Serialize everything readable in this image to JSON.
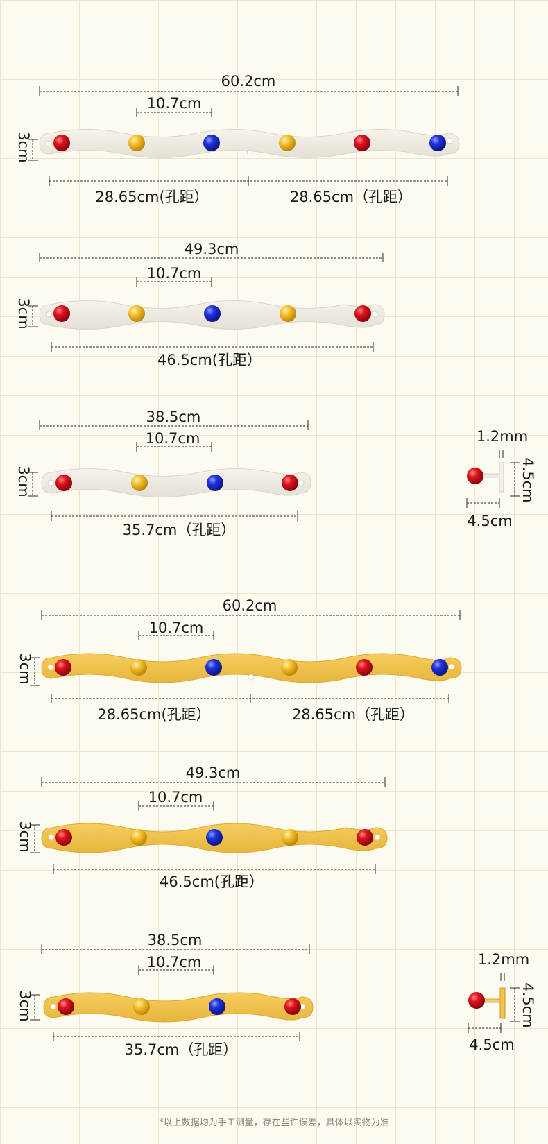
{
  "colors": {
    "background": "#fdfbef",
    "grid": "#ebe6d2",
    "white_rack": "#efebe3",
    "yellow_rack": "#f1c44e",
    "knob_red": "#c8101a",
    "knob_yellow": "#f0b92c",
    "knob_blue": "#1c2fd0",
    "dimension_line": "#2a2a2a"
  },
  "products": [
    {
      "finish": "white",
      "knobs": [
        "red",
        "yellow",
        "blue",
        "yellow",
        "red",
        "blue"
      ],
      "center_hole": true,
      "labels": {
        "total_length": "60.2cm",
        "knob_spacing": "10.7cm",
        "height": "3cm",
        "hole_distance_left": "28.65cm(孔距）",
        "hole_distance_right": "28.65cm（孔距）"
      }
    },
    {
      "finish": "white",
      "knobs": [
        "red",
        "yellow",
        "blue",
        "yellow",
        "red"
      ],
      "center_hole": false,
      "labels": {
        "total_length": "49.3cm",
        "knob_spacing": "10.7cm",
        "height": "3cm",
        "hole_distance": "46.5cm(孔距）"
      }
    },
    {
      "finish": "white",
      "knobs": [
        "red",
        "yellow",
        "blue",
        "red"
      ],
      "center_hole": false,
      "labels": {
        "total_length": "38.5cm",
        "knob_spacing": "10.7cm",
        "height": "3cm",
        "hole_distance": "35.7cm（孔距）"
      }
    },
    {
      "finish": "yellow",
      "knobs": [
        "red",
        "yellow",
        "blue",
        "yellow",
        "red",
        "blue"
      ],
      "center_hole": true,
      "labels": {
        "total_length": "60.2cm",
        "knob_spacing": "10.7cm",
        "height": "3cm",
        "hole_distance_left": "28.65cm(孔距）",
        "hole_distance_right": "28.65cm（孔距）"
      }
    },
    {
      "finish": "yellow",
      "knobs": [
        "red",
        "yellow",
        "blue",
        "yellow",
        "red"
      ],
      "center_hole": false,
      "labels": {
        "total_length": "49.3cm",
        "knob_spacing": "10.7cm",
        "height": "3cm",
        "hole_distance": "46.5cm(孔距）"
      }
    },
    {
      "finish": "yellow",
      "knobs": [
        "red",
        "yellow",
        "blue",
        "red"
      ],
      "center_hole": false,
      "labels": {
        "total_length": "38.5cm",
        "knob_spacing": "10.7cm",
        "height": "3cm",
        "hole_distance": "35.7cm（孔距）"
      }
    }
  ],
  "side_views": [
    {
      "finish": "white",
      "labels": {
        "thickness": "1.2mm",
        "height": "4.5cm",
        "depth": "4.5cm"
      }
    },
    {
      "finish": "yellow",
      "labels": {
        "thickness": "1.2mm",
        "height": "4.5cm",
        "depth": "4.5cm"
      }
    }
  ],
  "footer": {
    "note": "*以上数据均为手工测量，存在些许误差，具体以实物为准"
  }
}
